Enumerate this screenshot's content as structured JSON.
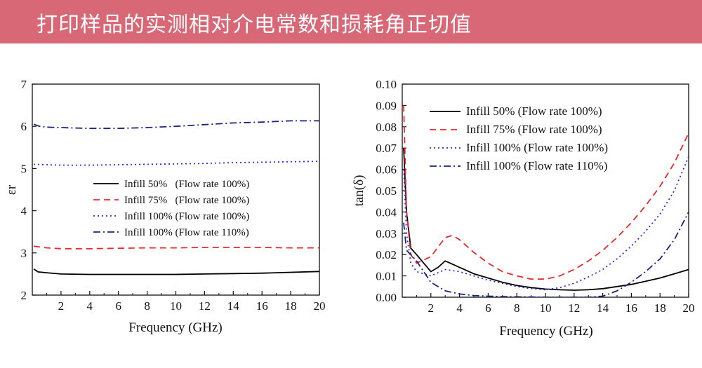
{
  "banner": {
    "title": "打印样品的实测相对介电常数和损耗角正切值"
  },
  "chart_data": [
    {
      "type": "line",
      "xlabel": "Frequency (GHz)",
      "ylabel": "εr",
      "xlim": [
        0,
        20
      ],
      "ylim": [
        2,
        7
      ],
      "xticks": [
        2,
        4,
        6,
        8,
        10,
        12,
        14,
        16,
        18,
        20
      ],
      "yticks": [
        2,
        3,
        4,
        5,
        6,
        7
      ],
      "legend_position": "center-right",
      "series": [
        {
          "name": "Infill 50%   (Flow rate 100%)",
          "color": "#000000",
          "dash": "solid",
          "x": [
            0.1,
            0.4,
            1,
            2,
            4,
            6,
            8,
            10,
            12,
            14,
            16,
            18,
            20
          ],
          "y": [
            2.62,
            2.55,
            2.53,
            2.5,
            2.49,
            2.49,
            2.49,
            2.49,
            2.5,
            2.51,
            2.52,
            2.54,
            2.56
          ]
        },
        {
          "name": "Infill 75%   (Flow rate 100%)",
          "color": "#e8282c",
          "dash": "dashed",
          "x": [
            0.1,
            1,
            2,
            4,
            6,
            8,
            10,
            12,
            14,
            16,
            18,
            20
          ],
          "y": [
            3.16,
            3.12,
            3.1,
            3.1,
            3.11,
            3.12,
            3.12,
            3.13,
            3.13,
            3.13,
            3.12,
            3.12
          ]
        },
        {
          "name": "Infill 100% (Flow rate 100%)",
          "color": "#2c2cd8",
          "dash": "dotted",
          "x": [
            0.1,
            1,
            2,
            4,
            6,
            8,
            10,
            12,
            14,
            16,
            18,
            20
          ],
          "y": [
            5.1,
            5.09,
            5.08,
            5.08,
            5.09,
            5.1,
            5.11,
            5.12,
            5.14,
            5.15,
            5.16,
            5.17
          ]
        },
        {
          "name": "Infill 100% (Flow rate 110%)",
          "color": "#1a237e",
          "dash": "dashdot",
          "x": [
            0.1,
            0.5,
            1,
            2,
            4,
            6,
            8,
            10,
            12,
            14,
            16,
            18,
            20
          ],
          "y": [
            6.05,
            6.0,
            5.98,
            5.97,
            5.95,
            5.95,
            5.97,
            6.0,
            6.04,
            6.08,
            6.1,
            6.13,
            6.13
          ]
        }
      ]
    },
    {
      "type": "line",
      "xlabel": "Frequency (GHz)",
      "ylabel": "tan(δ)",
      "xlim": [
        0,
        20
      ],
      "ylim": [
        0,
        0.1
      ],
      "xticks": [
        2,
        4,
        6,
        8,
        10,
        12,
        14,
        16,
        18,
        20
      ],
      "yticks": [
        "0.00",
        "0.01",
        "0.02",
        "0.03",
        "0.04",
        "0.05",
        "0.06",
        "0.07",
        "0.08",
        "0.09",
        "0.10"
      ],
      "legend_position": "top-left",
      "series": [
        {
          "name": "Infill 50% (Flow rate 100%)",
          "color": "#000000",
          "dash": "solid",
          "x": [
            0.1,
            0.3,
            0.6,
            1,
            1.5,
            2,
            2.5,
            3,
            4,
            5,
            6,
            7,
            8,
            9,
            10,
            11,
            12,
            13,
            14,
            15,
            16,
            17,
            18,
            19,
            20
          ],
          "y": [
            0.07,
            0.04,
            0.023,
            0.02,
            0.016,
            0.012,
            0.014,
            0.017,
            0.014,
            0.011,
            0.009,
            0.007,
            0.0055,
            0.0045,
            0.0038,
            0.0035,
            0.0033,
            0.0035,
            0.004,
            0.005,
            0.006,
            0.0075,
            0.009,
            0.011,
            0.013
          ]
        },
        {
          "name": "Infill 75% (Flow rate 100%)",
          "color": "#e8282c",
          "dash": "dashed",
          "x": [
            0.1,
            0.3,
            0.6,
            1,
            2,
            3,
            3.5,
            4,
            5,
            6,
            7,
            8,
            9,
            10,
            11,
            12,
            13,
            14,
            15,
            16,
            17,
            18,
            19,
            20
          ],
          "y": [
            0.09,
            0.04,
            0.02,
            0.016,
            0.019,
            0.028,
            0.029,
            0.027,
            0.021,
            0.016,
            0.012,
            0.01,
            0.0085,
            0.0085,
            0.01,
            0.013,
            0.017,
            0.022,
            0.028,
            0.035,
            0.043,
            0.052,
            0.063,
            0.077
          ]
        },
        {
          "name": "Infill 100% (Flow rate 100%)",
          "color": "#2c2cd8",
          "dash": "dotted",
          "x": [
            0.1,
            0.3,
            0.6,
            1,
            2,
            3,
            4,
            5,
            6,
            7,
            8,
            9,
            10,
            11,
            12,
            13,
            14,
            15,
            16,
            17,
            18,
            19,
            20
          ],
          "y": [
            0.06,
            0.03,
            0.016,
            0.012,
            0.01,
            0.013,
            0.012,
            0.01,
            0.008,
            0.0065,
            0.005,
            0.004,
            0.0035,
            0.0045,
            0.0065,
            0.0095,
            0.013,
            0.018,
            0.024,
            0.031,
            0.039,
            0.05,
            0.066
          ]
        },
        {
          "name": "Infill 100% (Flow rate 110%)",
          "color": "#1a237e",
          "dash": "dashdot",
          "x": [
            0.1,
            0.3,
            0.6,
            1,
            2,
            3,
            4,
            5,
            6,
            7,
            8,
            9,
            10,
            11,
            12,
            13,
            14,
            15,
            16,
            17,
            18,
            19,
            20
          ],
          "y": [
            0.035,
            0.022,
            0.02,
            0.017,
            0.007,
            0.003,
            0.0015,
            0.0008,
            0.0005,
            0.0003,
            0.0002,
            0.0001,
            0.0,
            0.0,
            0.0,
            0.0,
            0.0005,
            0.003,
            0.007,
            0.012,
            0.018,
            0.027,
            0.04
          ]
        }
      ]
    }
  ]
}
